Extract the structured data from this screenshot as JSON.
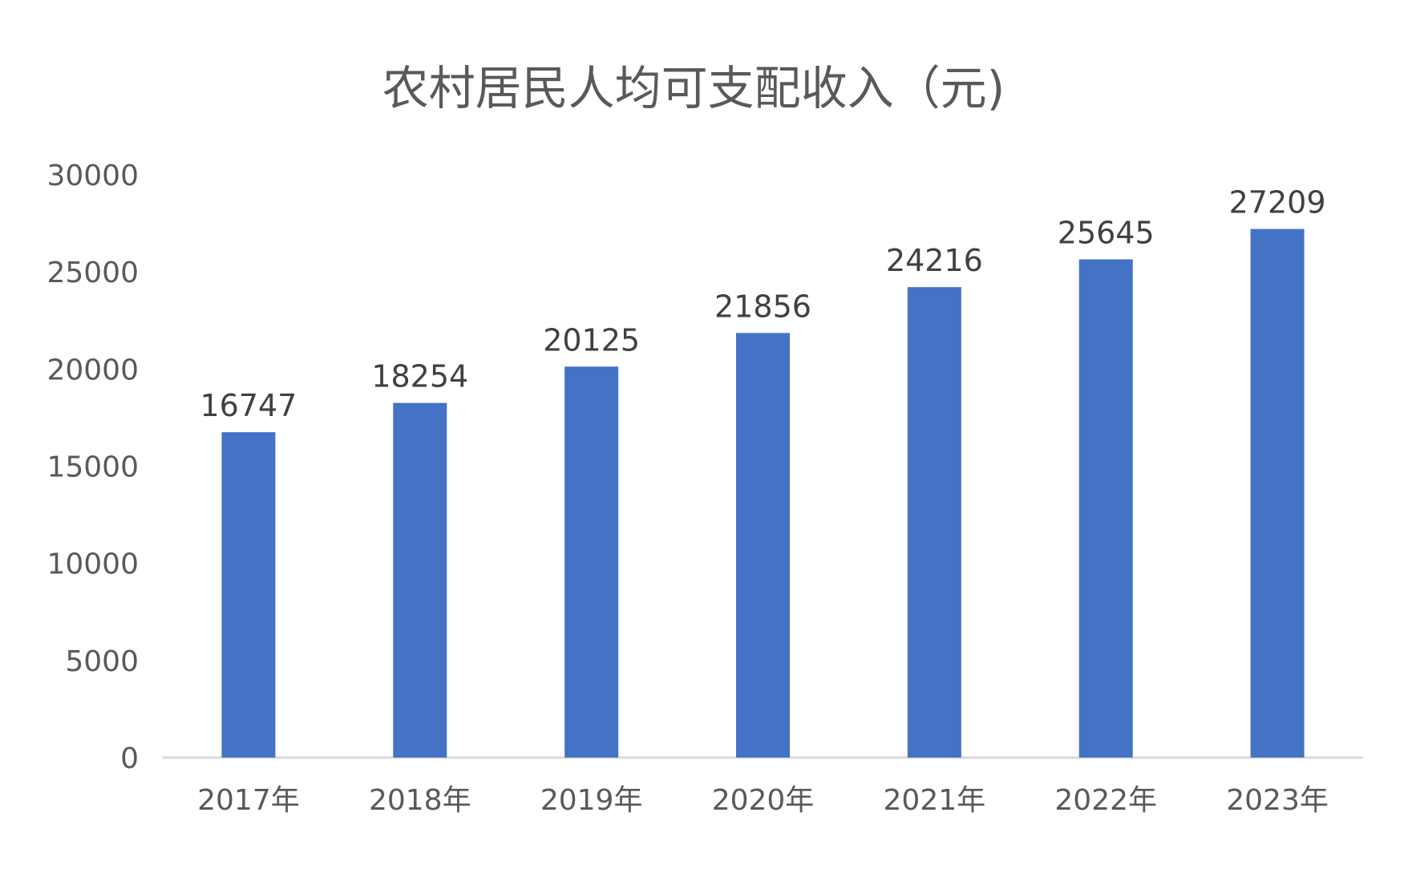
{
  "chart_data": {
    "type": "bar",
    "title": "农村居民人均可支配收入（元)",
    "xlabel": "",
    "ylabel": "",
    "categories": [
      "2017年",
      "2018年",
      "2019年",
      "2020年",
      "2021年",
      "2022年",
      "2023年"
    ],
    "values": [
      16747,
      18254,
      20125,
      21856,
      24216,
      25645,
      27209
    ],
    "data_labels": [
      "16747",
      "18254",
      "20125",
      "21856",
      "24216",
      "25645",
      "27209"
    ],
    "ylim": [
      0,
      30000
    ],
    "y_ticks": [
      0,
      5000,
      10000,
      15000,
      20000,
      25000,
      30000
    ],
    "y_tick_labels": [
      "0",
      "5000",
      "10000",
      "15000",
      "20000",
      "25000",
      "30000"
    ],
    "grid": false,
    "legend": "none",
    "colors": {
      "bar": "#4472C4",
      "axis": "#D9D9D9",
      "tick_text": "#595959",
      "title_text": "#595959",
      "data_label_text": "#404040"
    }
  }
}
